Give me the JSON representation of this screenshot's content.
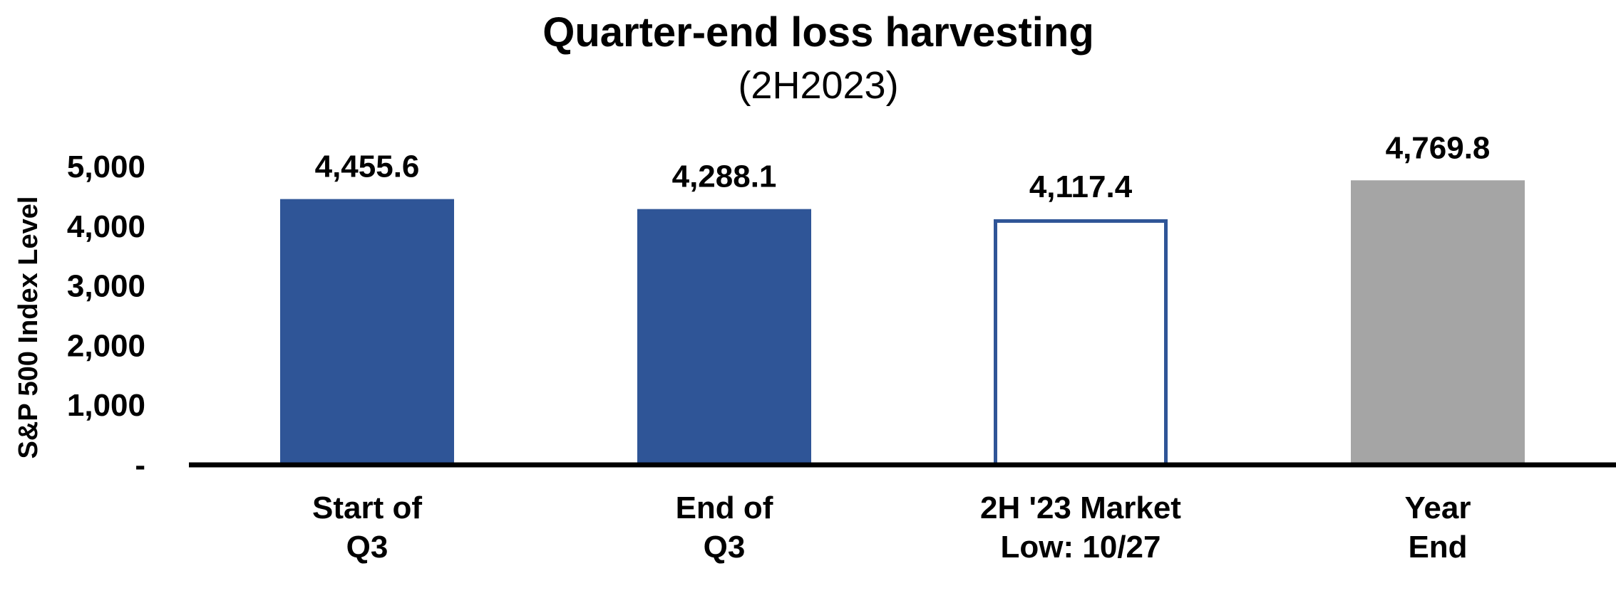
{
  "chart_data": {
    "type": "bar",
    "title": "Quarter-end loss harvesting",
    "subtitle": "(2H2023)",
    "ylabel": "S&P 500 Index Level",
    "xlabel": "",
    "ylim": [
      0,
      5000
    ],
    "yticks": [
      {
        "value": 0,
        "label": "-"
      },
      {
        "value": 1000,
        "label": "1,000"
      },
      {
        "value": 2000,
        "label": "2,000"
      },
      {
        "value": 3000,
        "label": "3,000"
      },
      {
        "value": 4000,
        "label": "4,000"
      },
      {
        "value": 5000,
        "label": "5,000"
      }
    ],
    "categories": [
      [
        "Start of",
        "Q3"
      ],
      [
        "End of",
        "Q3"
      ],
      [
        "2H '23 Market",
        "Low: 10/27"
      ],
      [
        "Year",
        "End"
      ]
    ],
    "values": [
      4455.6,
      4288.1,
      4117.4,
      4769.8
    ],
    "data_labels": [
      "4,455.6",
      "4,288.1",
      "4,117.4",
      "4,769.8"
    ],
    "bar_styles": [
      {
        "fill": "#2F5597",
        "stroke": "none"
      },
      {
        "fill": "#2F5597",
        "stroke": "none"
      },
      {
        "fill": "#FFFFFF",
        "stroke": "#2F5597"
      },
      {
        "fill": "#A5A5A5",
        "stroke": "none"
      }
    ],
    "grid": false,
    "legend": "none"
  }
}
